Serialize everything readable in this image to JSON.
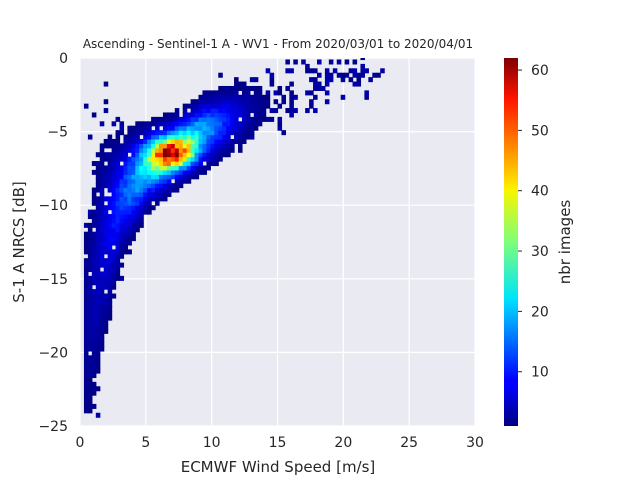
{
  "chart_data": {
    "type": "heatmap",
    "title": "Ascending - Sentinel-1 A - WV1 - From 2020/03/01 to 2020/04/01",
    "xlabel": "ECMWF Wind Speed [m/s]",
    "ylabel": "S-1 A NRCS [dB]",
    "xlim": [
      0,
      30
    ],
    "ylim": [
      -25,
      0
    ],
    "xticks": [
      0,
      5,
      10,
      15,
      20,
      25,
      30
    ],
    "xtick_labels": [
      "0",
      "5",
      "10",
      "15",
      "20",
      "25",
      "30"
    ],
    "yticks": [
      0,
      -5,
      -10,
      -15,
      -20,
      -25
    ],
    "ytick_labels": [
      "0",
      "−5",
      "−10",
      "−15",
      "−20",
      "−25"
    ],
    "grid": true,
    "background": "#eaeaf2",
    "colormap": "jet",
    "colorbar": {
      "label": "nbr images",
      "range": [
        1,
        62
      ],
      "ticks": [
        10,
        20,
        30,
        40,
        50,
        60
      ],
      "tick_labels": [
        "10",
        "20",
        "30",
        "40",
        "50",
        "60"
      ]
    },
    "bin_size": [
      0.3,
      0.3
    ],
    "density_model": {
      "description_points": [
        {
          "wind_speed": 0.5,
          "nrcs_db": -18.0,
          "spread_db": 5.0
        },
        {
          "wind_speed": 1.5,
          "nrcs_db": -13.0,
          "spread_db": 4.0
        },
        {
          "wind_speed": 3.0,
          "nrcs_db": -9.5,
          "spread_db": 2.0
        },
        {
          "wind_speed": 5.0,
          "nrcs_db": -7.5,
          "spread_db": 1.3
        },
        {
          "wind_speed": 7.0,
          "nrcs_db": -6.5,
          "spread_db": 1.1
        },
        {
          "wind_speed": 9.0,
          "nrcs_db": -5.3,
          "spread_db": 1.1
        },
        {
          "wind_speed": 12.0,
          "nrcs_db": -4.0,
          "spread_db": 1.2
        },
        {
          "wind_speed": 15.0,
          "nrcs_db": -3.0,
          "spread_db": 1.2
        },
        {
          "wind_speed": 18.0,
          "nrcs_db": -2.0,
          "spread_db": 1.0
        },
        {
          "wind_speed": 22.0,
          "nrcs_db": -0.8,
          "spread_db": 0.6
        }
      ],
      "peak": {
        "wind_speed": 6.8,
        "nrcs_db": -6.6,
        "count": 62
      }
    }
  }
}
